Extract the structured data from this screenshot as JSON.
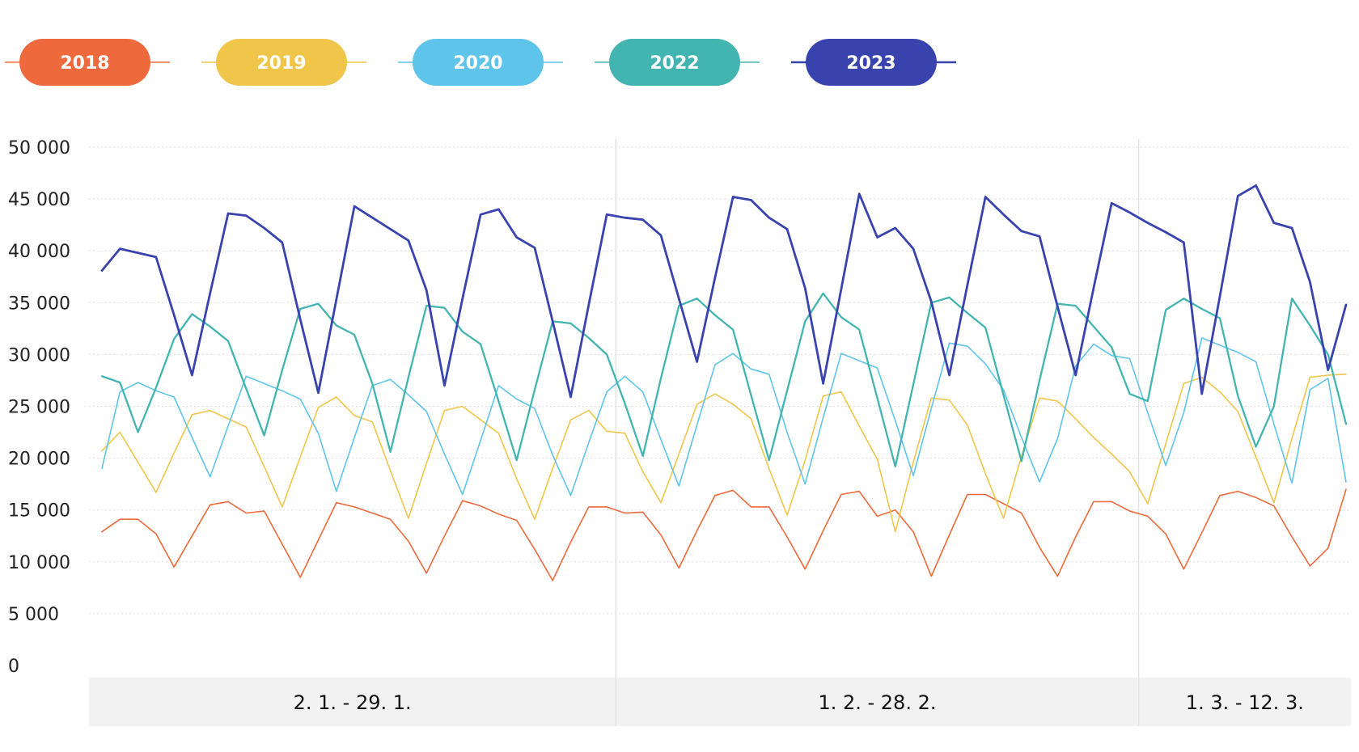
{
  "chart_data": {
    "type": "line",
    "title": "",
    "xlabel": "",
    "ylabel": "",
    "ylim": [
      0,
      50000
    ],
    "yticks": [
      0,
      5000,
      10000,
      15000,
      20000,
      25000,
      30000,
      35000,
      40000,
      45000,
      50000
    ],
    "ytick_labels": [
      "0",
      "5 000",
      "10 000",
      "15 000",
      "20 000",
      "25 000",
      "30 000",
      "35 000",
      "40 000",
      "45 000",
      "50 000"
    ],
    "grid": "horizontal dotted",
    "legend_position": "top-left",
    "points": 70,
    "periods": [
      {
        "label": "2. 1. - 29. 1.",
        "points": 29
      },
      {
        "label": "1. 2. - 28. 2.",
        "points": 29
      },
      {
        "label": "1. 3. - 12. 3.",
        "points": 12
      }
    ],
    "series": [
      {
        "name": "2018",
        "color": "#ee6a3c",
        "width": 1.6,
        "values": [
          12900,
          14100,
          14100,
          12700,
          9500,
          12500,
          15500,
          15800,
          14700,
          14900,
          11700,
          8500,
          12100,
          15700,
          15300,
          14700,
          14100,
          12000,
          8900,
          12500,
          15900,
          15400,
          14600,
          14000,
          11200,
          8200,
          11900,
          15300,
          15300,
          14700,
          14800,
          12600,
          9400,
          13000,
          16400,
          16900,
          15300,
          15300,
          12400,
          9300,
          13000,
          16500,
          16800,
          14400,
          15000,
          12900,
          8600,
          12600,
          16500,
          16500,
          15600,
          14700,
          11400,
          8600,
          12400,
          15800,
          15800,
          14900,
          14400,
          12700,
          9300,
          12800,
          16400,
          16800,
          16200,
          15400,
          12400,
          9600,
          11300,
          17000
        ]
      },
      {
        "name": "2019",
        "color": "#f0c64a",
        "width": 1.6,
        "values": [
          20700,
          22500,
          19600,
          16700,
          20500,
          24200,
          24600,
          23800,
          23000,
          19200,
          15300,
          20100,
          24900,
          25900,
          24100,
          23500,
          18800,
          14200,
          19500,
          24600,
          25000,
          23700,
          22400,
          18000,
          14100,
          19000,
          23700,
          24600,
          22600,
          22400,
          18700,
          15700,
          20400,
          25200,
          26200,
          25200,
          23800,
          19000,
          14500,
          19800,
          26000,
          26400,
          23100,
          19900,
          12900,
          19600,
          25800,
          25600,
          23200,
          18500,
          14200,
          20200,
          25800,
          25500,
          23800,
          22000,
          20400,
          18700,
          15600,
          21400,
          27200,
          27800,
          26400,
          24500,
          20100,
          15700,
          21900,
          27800,
          28000,
          28100
        ]
      },
      {
        "name": "2020",
        "color": "#5fc4ea",
        "width": 1.6,
        "values": [
          19000,
          26400,
          27300,
          26500,
          25900,
          22000,
          18200,
          23100,
          27900,
          27200,
          26500,
          25700,
          22400,
          16800,
          22000,
          27000,
          27600,
          26100,
          24500,
          20400,
          16500,
          21700,
          27000,
          25700,
          24800,
          20300,
          16400,
          21500,
          26400,
          27900,
          26400,
          21800,
          17300,
          23200,
          29000,
          30100,
          28600,
          28100,
          22500,
          17500,
          23900,
          30100,
          29400,
          28700,
          23600,
          18300,
          24800,
          31100,
          30800,
          29100,
          26600,
          22000,
          17700,
          21900,
          28900,
          31000,
          29900,
          29600,
          24400,
          19300,
          24400,
          31600,
          30900,
          30200,
          29300,
          23300,
          17600,
          26600,
          27700,
          17700
        ]
      },
      {
        "name": "2022",
        "color": "#43b5b0",
        "width": 2.3,
        "values": [
          27900,
          27300,
          22500,
          26800,
          31500,
          33900,
          32700,
          31300,
          26700,
          22200,
          28500,
          34400,
          34900,
          32800,
          31900,
          27200,
          20600,
          27800,
          34700,
          34500,
          32200,
          31000,
          25500,
          19800,
          26600,
          33200,
          33000,
          31600,
          30000,
          25300,
          20200,
          27700,
          34700,
          35400,
          33800,
          32400,
          26100,
          19800,
          26500,
          33200,
          35900,
          33600,
          32400,
          25800,
          19200,
          27100,
          35000,
          35500,
          34000,
          32600,
          26100,
          19700,
          27500,
          34900,
          34700,
          32700,
          30700,
          26200,
          25500,
          34300,
          35400,
          34400,
          33500,
          26000,
          21100,
          25000,
          35400,
          32800,
          30000,
          23300
        ]
      },
      {
        "name": "2023",
        "color": "#3943ae",
        "width": 2.8,
        "values": [
          38100,
          40200,
          39800,
          39400,
          33800,
          28000,
          35900,
          43600,
          43400,
          42200,
          40800,
          33400,
          26300,
          35300,
          44300,
          43200,
          42100,
          41000,
          36200,
          27000,
          35400,
          43500,
          44000,
          41300,
          40300,
          33200,
          25900,
          34800,
          43500,
          43200,
          43000,
          41500,
          35400,
          29300,
          37400,
          45200,
          44900,
          43200,
          42100,
          36400,
          27200,
          36300,
          45500,
          41300,
          42200,
          40200,
          35100,
          28000,
          36700,
          45200,
          43500,
          41900,
          41400,
          34600,
          28000,
          36400,
          44600,
          43700,
          42700,
          41800,
          40800,
          26200,
          35600,
          45300,
          46300,
          42700,
          42200,
          37000,
          28500,
          34800
        ]
      }
    ],
    "legend": [
      {
        "label": "2018",
        "color": "#ee6a3c"
      },
      {
        "label": "2019",
        "color": "#f0c64a"
      },
      {
        "label": "2020",
        "color": "#5fc4ea"
      },
      {
        "label": "2022",
        "color": "#43b5b0"
      },
      {
        "label": "2023",
        "color": "#3943ae"
      }
    ]
  }
}
